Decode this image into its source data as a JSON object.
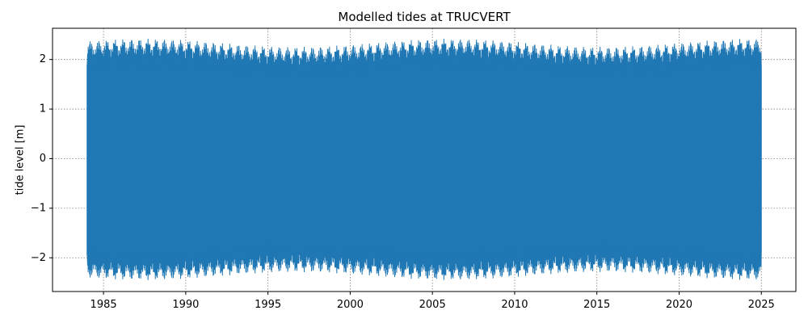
{
  "chart_data": {
    "type": "line",
    "title": "Modelled tides at TRUCVERT",
    "xlabel": "",
    "ylabel": "tide level [m]",
    "x_range": [
      1984.0,
      2025.0
    ],
    "xlim": [
      1981.9,
      2027.1
    ],
    "ylim": [
      -2.68,
      2.63
    ],
    "x_ticks": [
      1985,
      1990,
      1995,
      2000,
      2005,
      2010,
      2015,
      2020,
      2025
    ],
    "x_tick_labels": [
      "1985",
      "1990",
      "1995",
      "2000",
      "2005",
      "2010",
      "2015",
      "2020",
      "2025"
    ],
    "y_ticks": [
      -2,
      -1,
      0,
      1,
      2
    ],
    "y_tick_labels": [
      "−2",
      "−1",
      "0",
      "1",
      "2"
    ],
    "grid": true,
    "series": [
      {
        "color": "#1f77b4",
        "envelope_summary": {
          "typical_max": 2.2,
          "typical_min": -2.2,
          "peak_max": 2.42,
          "peak_min": -2.45,
          "neap_max": 1.6,
          "neap_min": -1.65
        }
      }
    ]
  }
}
